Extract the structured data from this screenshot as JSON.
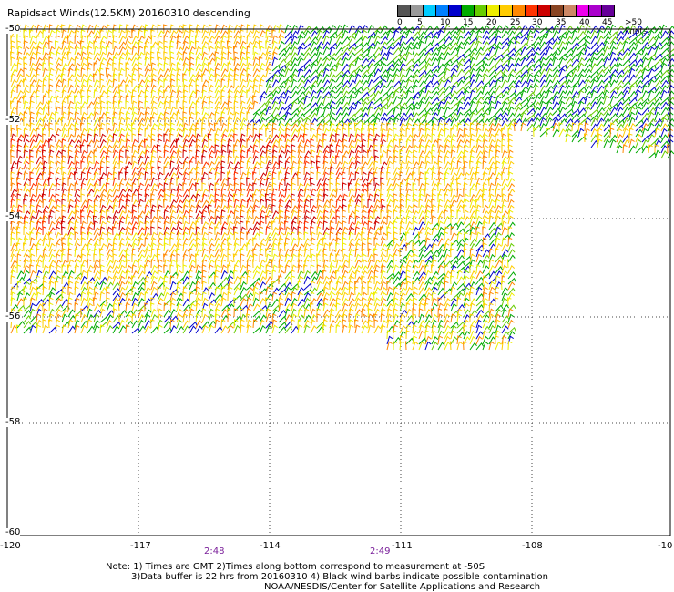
{
  "title": "Rapidsact Winds(12.5KM) 20160310 descending",
  "legend": {
    "colors": [
      "#555555",
      "#999999",
      "#00ccff",
      "#0080ff",
      "#0000cc",
      "#00aa00",
      "#66cc00",
      "#eeee00",
      "#ffcc00",
      "#ff8800",
      "#ff3300",
      "#cc0000",
      "#884422",
      "#cc8866",
      "#ee00ee",
      "#aa00cc",
      "#660099"
    ],
    "labels": [
      "0",
      "5",
      "10",
      "15",
      "20",
      "25",
      "30",
      "35",
      "40",
      "45",
      ">50 knots"
    ]
  },
  "lat_labels": [
    "-50",
    "-52",
    "-54",
    "-56",
    "-58",
    "-60"
  ],
  "lon_labels": [
    "-120",
    "-117",
    "-114",
    "-111",
    "-108",
    "-10"
  ],
  "times": [
    "2:48",
    "2:49"
  ],
  "notes": {
    "line1": "Note: 1) Times are GMT 2)Times along bottom correspond to measurement at -50S",
    "line2": "3)Data buffer is 22 hrs from 20160310 4) Black wind barbs indicate possible contamination",
    "line3": "NOAA/NESDIS/Center for Satellite Applications and Research"
  }
}
